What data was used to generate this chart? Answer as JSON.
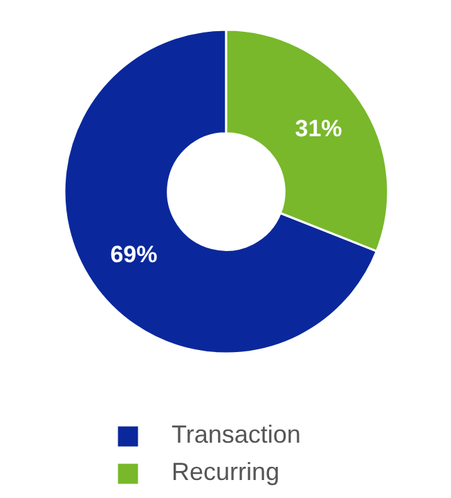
{
  "chart_data": {
    "type": "donut",
    "categories": [
      "Transaction",
      "Recurring"
    ],
    "values": [
      69,
      31
    ],
    "colors": [
      "#0a289c",
      "#78b82a"
    ],
    "value_labels": [
      "69%",
      "31%"
    ],
    "legend": "bottom"
  }
}
